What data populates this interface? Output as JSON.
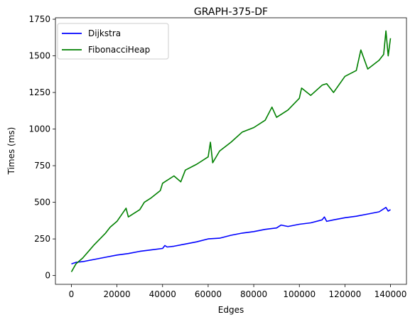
{
  "chart_data": {
    "type": "line",
    "title": "GRAPH-375-DF",
    "xlabel": "Edges",
    "ylabel": "Times (ms)",
    "xlim": [
      -7000,
      147000
    ],
    "ylim": [
      -60,
      1760
    ],
    "x_ticks": [
      0,
      20000,
      40000,
      60000,
      80000,
      100000,
      120000,
      140000
    ],
    "x_tick_labels": [
      "0",
      "20000",
      "40000",
      "60000",
      "80000",
      "100000",
      "120000",
      "140000"
    ],
    "y_ticks": [
      0,
      250,
      500,
      750,
      1000,
      1250,
      1500,
      1750
    ],
    "y_tick_labels": [
      "0",
      "250",
      "500",
      "750",
      "1000",
      "1250",
      "1500",
      "1750"
    ],
    "grid": false,
    "legend": {
      "placement": "top-left"
    },
    "series": [
      {
        "name": "Dijkstra",
        "color": "#0000ff",
        "x": [
          0,
          2000,
          5000,
          10000,
          15000,
          20000,
          25000,
          30000,
          35000,
          40000,
          41000,
          42000,
          45000,
          50000,
          55000,
          60000,
          65000,
          70000,
          75000,
          80000,
          85000,
          90000,
          92000,
          95000,
          100000,
          105000,
          110000,
          111000,
          112000,
          115000,
          120000,
          125000,
          130000,
          135000,
          138000,
          139000,
          140000
        ],
        "values": [
          80,
          90,
          95,
          110,
          125,
          140,
          150,
          165,
          175,
          185,
          205,
          195,
          200,
          215,
          230,
          250,
          255,
          275,
          290,
          300,
          315,
          325,
          345,
          335,
          350,
          360,
          380,
          400,
          370,
          380,
          395,
          405,
          420,
          435,
          465,
          440,
          450
        ]
      },
      {
        "name": "FibonacciHeap",
        "color": "#008000",
        "x": [
          0,
          2000,
          5000,
          10000,
          15000,
          17000,
          20000,
          24000,
          25000,
          30000,
          32000,
          35000,
          39000,
          40000,
          45000,
          48000,
          50000,
          55000,
          60000,
          61000,
          62000,
          65000,
          70000,
          75000,
          80000,
          85000,
          88000,
          90000,
          95000,
          100000,
          101000,
          105000,
          110000,
          112000,
          115000,
          120000,
          125000,
          127000,
          130000,
          135000,
          137000,
          138000,
          139000,
          140000
        ],
        "values": [
          25,
          80,
          120,
          210,
          290,
          330,
          370,
          460,
          400,
          450,
          500,
          530,
          580,
          630,
          680,
          640,
          720,
          760,
          810,
          910,
          770,
          850,
          910,
          980,
          1010,
          1060,
          1150,
          1080,
          1130,
          1210,
          1280,
          1230,
          1300,
          1310,
          1250,
          1360,
          1400,
          1540,
          1410,
          1470,
          1510,
          1670,
          1500,
          1620
        ]
      }
    ]
  }
}
